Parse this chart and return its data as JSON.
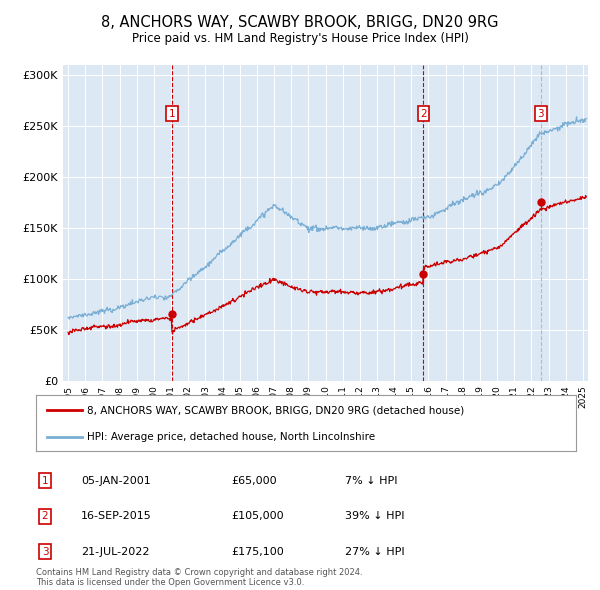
{
  "title": "8, ANCHORS WAY, SCAWBY BROOK, BRIGG, DN20 9RG",
  "subtitle": "Price paid vs. HM Land Registry's House Price Index (HPI)",
  "background_color": "#ffffff",
  "plot_bg_color": "#dce9f5",
  "grid_color": "#ffffff",
  "red_line_color": "#cc0000",
  "blue_line_color": "#7aaed4",
  "sale_box_color": "#cc0000",
  "sales": [
    {
      "label": "1",
      "date_num": 2001.04,
      "price": 65000,
      "date_str": "05-JAN-2001",
      "pct": "7% ↓ HPI",
      "vline_color": "#cc0000",
      "vline_style": "--"
    },
    {
      "label": "2",
      "date_num": 2015.71,
      "price": 105000,
      "date_str": "16-SEP-2015",
      "pct": "39% ↓ HPI",
      "vline_color": "#cc0000",
      "vline_style": "--"
    },
    {
      "label": "3",
      "date_num": 2022.54,
      "price": 175100,
      "date_str": "21-JUL-2022",
      "pct": "27% ↓ HPI",
      "vline_color": "#aabbcc",
      "vline_style": "--"
    }
  ],
  "ylim": [
    0,
    310000
  ],
  "xlim": [
    1994.7,
    2025.3
  ],
  "yticks": [
    0,
    50000,
    100000,
    150000,
    200000,
    250000,
    300000
  ],
  "ytick_labels": [
    "£0",
    "£50K",
    "£100K",
    "£150K",
    "£200K",
    "£250K",
    "£300K"
  ],
  "xticks": [
    1995,
    1996,
    1997,
    1998,
    1999,
    2000,
    2001,
    2002,
    2003,
    2004,
    2005,
    2006,
    2007,
    2008,
    2009,
    2010,
    2011,
    2012,
    2013,
    2014,
    2015,
    2016,
    2017,
    2018,
    2019,
    2020,
    2021,
    2022,
    2023,
    2024,
    2025
  ],
  "legend_entries": [
    "8, ANCHORS WAY, SCAWBY BROOK, BRIGG, DN20 9RG (detached house)",
    "HPI: Average price, detached house, North Lincolnshire"
  ],
  "footer": "Contains HM Land Registry data © Crown copyright and database right 2024.\nThis data is licensed under the Open Government Licence v3.0.",
  "table_rows": [
    [
      "1",
      "05-JAN-2001",
      "£65,000",
      "7% ↓ HPI"
    ],
    [
      "2",
      "16-SEP-2015",
      "£105,000",
      "39% ↓ HPI"
    ],
    [
      "3",
      "21-JUL-2022",
      "£175,100",
      "27% ↓ HPI"
    ]
  ]
}
